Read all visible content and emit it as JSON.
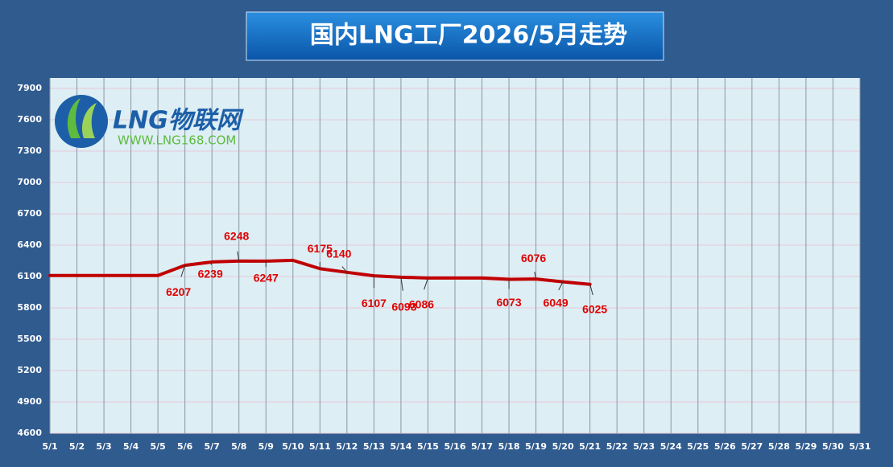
{
  "chart_data": {
    "type": "line",
    "title": "国内LNG工厂2026/5月走势",
    "logo": {
      "name": "LNG物联网",
      "url": "WWW.LNG168.COM"
    },
    "categories": [
      "5/1",
      "5/2",
      "5/3",
      "5/4",
      "5/5",
      "5/6",
      "5/7",
      "5/8",
      "5/9",
      "5/10",
      "5/11",
      "5/12",
      "5/13",
      "5/14",
      "5/15",
      "5/16",
      "5/17",
      "5/18",
      "5/19",
      "5/20",
      "5/21",
      "5/22",
      "5/23",
      "5/24",
      "5/25",
      "5/26",
      "5/27",
      "5/28",
      "5/29",
      "5/30",
      "5/31"
    ],
    "series": [
      {
        "color": "#c00000",
        "values": [
          6110,
          6110,
          6110,
          6110,
          6110,
          6207,
          6239,
          6248,
          6247,
          6255,
          6175,
          6140,
          6107,
          6093,
          6086,
          6086,
          6086,
          6073,
          6076,
          6049,
          6025,
          null,
          null,
          null,
          null,
          null,
          null,
          null,
          null,
          null,
          null
        ],
        "value_labels": [
          null,
          null,
          null,
          null,
          null,
          "6207",
          "6239",
          "6248",
          "6247",
          null,
          "6175",
          "6140",
          "6107",
          "6093",
          "6086",
          null,
          null,
          "6073",
          "6076",
          "6049",
          "6025",
          null,
          null,
          null,
          null,
          null,
          null,
          null,
          null,
          null,
          null
        ]
      }
    ],
    "ylim": [
      4600,
      8000
    ],
    "yticks": [
      4600,
      4900,
      5200,
      5500,
      5800,
      6100,
      6400,
      6700,
      7000,
      7300,
      7600,
      7900
    ],
    "grid": true
  }
}
